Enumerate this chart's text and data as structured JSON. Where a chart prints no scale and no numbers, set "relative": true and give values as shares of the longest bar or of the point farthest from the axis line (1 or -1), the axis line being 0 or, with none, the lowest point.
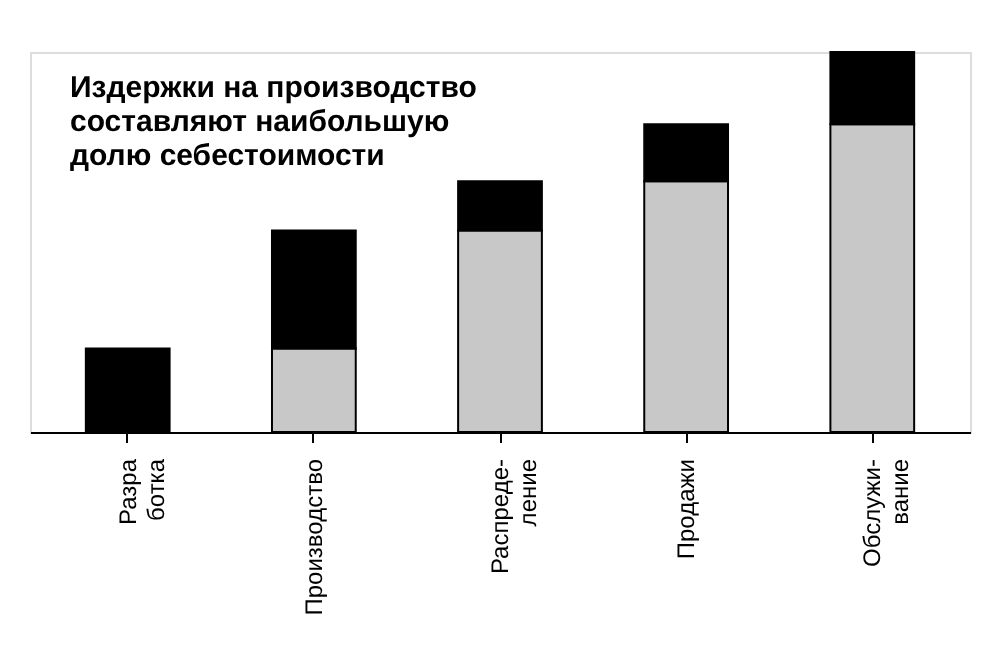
{
  "chart_data": {
    "type": "bar",
    "title": "Издержки на производство\nсоставляют наибольшую\nдолю себестоимости",
    "categories": [
      "Разра\nботка",
      "Производство",
      "Распреде-\nление",
      "Продажи",
      "Обслужи-\nвание"
    ],
    "stacked": true,
    "relative": true,
    "series": [
      {
        "color": "#c8c8c8",
        "values": [
          0,
          0.22,
          0.53,
          0.66,
          0.81
        ]
      },
      {
        "color": "#000000",
        "values": [
          0.22,
          0.31,
          0.13,
          0.15,
          0.19
        ]
      }
    ]
  }
}
